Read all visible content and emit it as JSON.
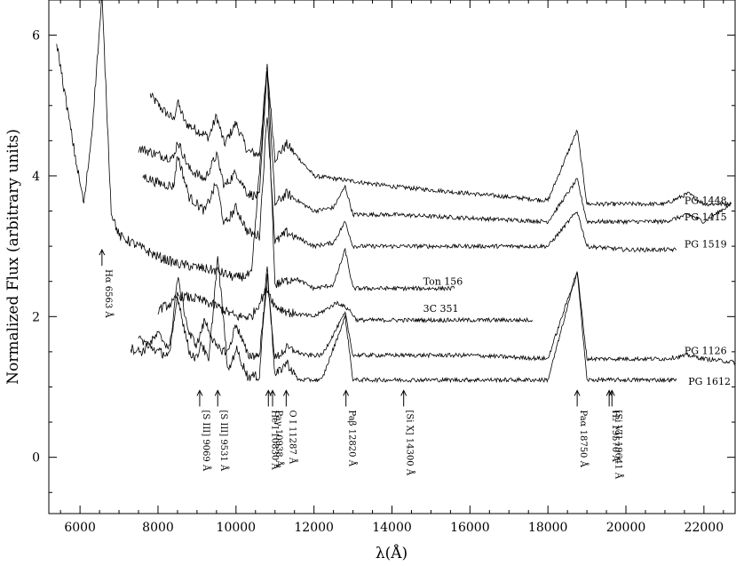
{
  "chart_data": {
    "type": "line",
    "title": "",
    "xlabel": "λ(Å)",
    "ylabel": "Normalized Flux (arbitrary units)",
    "xlim": [
      5200,
      22800
    ],
    "ylim": [
      -0.8,
      6.5
    ],
    "x_ticks": [
      6000,
      8000,
      10000,
      12000,
      14000,
      16000,
      18000,
      20000,
      22000
    ],
    "y_ticks": [
      0,
      2,
      4,
      6
    ],
    "grid": false,
    "legend": "none",
    "series": [
      {
        "name": "PG 1448",
        "label_at": [
          21500,
          3.65
        ],
        "x": [
          7800,
          8100,
          8400,
          8500,
          8700,
          9000,
          9300,
          9500,
          9700,
          10000,
          10300,
          10600,
          10800,
          11000,
          11300,
          12000,
          14000,
          16000,
          18000,
          18750,
          19000,
          20000,
          21000,
          21600,
          22000,
          22700
        ],
        "y": [
          5.15,
          4.95,
          4.8,
          5.05,
          4.75,
          4.65,
          4.55,
          4.85,
          4.45,
          4.75,
          4.35,
          4.3,
          5.55,
          4.25,
          4.45,
          4.0,
          3.85,
          3.75,
          3.65,
          4.65,
          3.6,
          3.6,
          3.6,
          3.75,
          3.6,
          3.6
        ]
      },
      {
        "name": "PG 1415",
        "label_at": [
          21500,
          3.42
        ],
        "x": [
          7500,
          8000,
          8400,
          8500,
          8800,
          9200,
          9500,
          9700,
          10000,
          10300,
          10600,
          10800,
          11000,
          11300,
          12000,
          12500,
          12800,
          13000,
          14000,
          16000,
          18000,
          18750,
          19000,
          20000,
          21000,
          21600,
          22000,
          22700
        ],
        "y": [
          4.4,
          4.3,
          4.25,
          4.5,
          4.1,
          3.95,
          4.3,
          3.85,
          4.05,
          3.75,
          3.7,
          5.55,
          3.6,
          3.75,
          3.5,
          3.55,
          3.85,
          3.45,
          3.45,
          3.4,
          3.35,
          3.95,
          3.35,
          3.35,
          3.35,
          3.45,
          3.35,
          3.6
        ]
      },
      {
        "name": "PG 1519",
        "label_at": [
          21500,
          3.03
        ],
        "x": [
          7600,
          8000,
          8400,
          8500,
          8800,
          9200,
          9500,
          9700,
          10000,
          10300,
          10600,
          10800,
          11000,
          11300,
          12000,
          12500,
          12800,
          13000,
          14000,
          16000,
          18000,
          18750,
          19000,
          20000,
          21300
        ],
        "y": [
          4.0,
          3.9,
          3.85,
          4.3,
          3.7,
          3.5,
          3.9,
          3.3,
          3.55,
          3.2,
          3.15,
          4.9,
          3.05,
          3.2,
          3.0,
          3.05,
          3.35,
          3.0,
          3.0,
          3.0,
          3.0,
          3.5,
          3.0,
          2.95,
          2.95
        ]
      },
      {
        "name": "Ton 156",
        "label_at": [
          14800,
          2.5
        ],
        "x": [
          5400,
          5600,
          5900,
          6100,
          6300,
          6563,
          6800,
          7000,
          7500,
          8000,
          8500,
          9000,
          9500,
          10000,
          10400,
          10800,
          11000,
          11500,
          12000,
          12500,
          12800,
          13000,
          14000,
          15600
        ],
        "y": [
          5.9,
          5.2,
          4.2,
          3.6,
          4.6,
          6.55,
          3.5,
          3.15,
          3.0,
          2.85,
          2.75,
          2.7,
          2.65,
          2.55,
          2.6,
          5.5,
          2.45,
          2.55,
          2.4,
          2.45,
          2.95,
          2.4,
          2.4,
          2.4
        ]
      },
      {
        "name": "3C 351",
        "label_at": [
          14800,
          2.12
        ],
        "x": [
          8000,
          8400,
          8500,
          9000,
          9500,
          10000,
          10400,
          10800,
          11000,
          11400,
          12000,
          12600,
          12900,
          13100,
          14000,
          16000,
          17600
        ],
        "y": [
          2.1,
          2.2,
          2.3,
          2.25,
          2.15,
          2.0,
          2.0,
          2.4,
          2.15,
          2.05,
          2.0,
          2.2,
          2.1,
          1.95,
          1.95,
          1.95,
          1.95
        ]
      },
      {
        "name": "PG 1126",
        "label_at": [
          21500,
          1.52
        ],
        "x": [
          7300,
          7600,
          8000,
          8300,
          8500,
          8800,
          9000,
          9200,
          9500,
          9800,
          10000,
          10300,
          10600,
          10800,
          11000,
          11300,
          11800,
          12200,
          12800,
          13000,
          14000,
          16000,
          18000,
          18750,
          19000,
          20000,
          21000,
          21600,
          22000,
          22800
        ],
        "y": [
          1.55,
          1.5,
          1.75,
          1.55,
          2.55,
          1.75,
          1.6,
          1.95,
          1.55,
          1.5,
          1.9,
          1.45,
          1.45,
          2.55,
          1.4,
          1.55,
          1.45,
          1.45,
          2.05,
          1.45,
          1.45,
          1.45,
          1.4,
          2.65,
          1.4,
          1.4,
          1.4,
          1.45,
          1.4,
          1.35
        ]
      },
      {
        "name": "PG 1612",
        "label_at": [
          21600,
          1.08
        ],
        "x": [
          7500,
          8000,
          8300,
          8500,
          8800,
          9000,
          9100,
          9300,
          9531,
          9800,
          10000,
          10300,
          10600,
          10800,
          11000,
          11300,
          11600,
          12200,
          12800,
          13000,
          14000,
          16000,
          18000,
          18750,
          19000,
          20000,
          21300
        ],
        "y": [
          1.7,
          1.5,
          1.45,
          2.3,
          1.5,
          1.4,
          1.65,
          1.35,
          2.85,
          1.2,
          1.55,
          1.15,
          1.15,
          2.75,
          1.15,
          1.35,
          1.1,
          1.1,
          2.0,
          1.1,
          1.1,
          1.1,
          1.1,
          2.65,
          1.1,
          1.1,
          1.1
        ]
      }
    ],
    "annotations": [
      {
        "text": "Hα 6563 Å",
        "x": 6563,
        "y_arrow": 2.95,
        "type": "vertical"
      },
      {
        "text": "[S III] 9069 Å",
        "x": 9069,
        "y_arrow": 0.95,
        "type": "vertical"
      },
      {
        "text": "[S III] 9531 Å",
        "x": 9531,
        "y_arrow": 0.95,
        "type": "vertical"
      },
      {
        "text": "He I 10830 Å",
        "x": 10830,
        "y_arrow": 0.95,
        "type": "vertical"
      },
      {
        "text": "Paγ 10938 Å",
        "x": 10938,
        "y_arrow": 0.95,
        "type": "vertical"
      },
      {
        "text": "O I 11287 Å",
        "x": 11287,
        "y_arrow": 0.95,
        "type": "vertical"
      },
      {
        "text": "Paβ 12820 Å",
        "x": 12820,
        "y_arrow": 0.95,
        "type": "vertical"
      },
      {
        "text": "[Si X] 14300 Å",
        "x": 14300,
        "y_arrow": 0.95,
        "type": "vertical"
      },
      {
        "text": "Paα 18750 Å",
        "x": 18750,
        "y_arrow": 0.95,
        "type": "vertical"
      },
      {
        "text": "H₂ 19570 Å",
        "x": 19570,
        "y_arrow": 0.95,
        "type": "vertical"
      },
      {
        "text": "[Si VI] 19641 Å",
        "x": 19641,
        "y_arrow": 0.95,
        "type": "vertical"
      }
    ]
  }
}
